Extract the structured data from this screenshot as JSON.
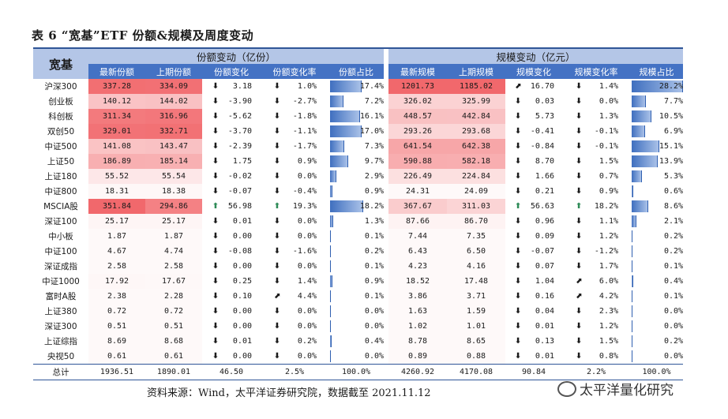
{
  "title": "表 6 “宽基”ETF 份额&规模及周度变动",
  "header": {
    "name": "宽基",
    "share_group": "份额变动（亿份）",
    "scale_group": "规模变动（亿元）",
    "share_cols": [
      "最新份额",
      "上期份额",
      "份额变化",
      "份额变化率",
      "份额占比"
    ],
    "scale_cols": [
      "最新规模",
      "上期规模",
      "规模变化",
      "规模变化率",
      "规模占比"
    ]
  },
  "colors": {
    "header_dark": "#4472c4",
    "header_light": "#b4c6e7",
    "heat": "#f0686c",
    "bar": "#4472c4",
    "up": "#2e8b57",
    "down": "#d0362c",
    "flat": "#e0a030"
  },
  "rows": [
    {
      "name": "沪深300",
      "sl": "337.28",
      "sp": "334.09",
      "sc": "3.18",
      "scd": "down",
      "sr": "1.0%",
      "srd": "down",
      "so": "17.4%",
      "gl": "1201.73",
      "gp": "1185.02",
      "gc": "16.70",
      "gcd": "flat",
      "gr": "1.4%",
      "grd": "down",
      "go": "28.2%"
    },
    {
      "name": "创业板",
      "sl": "140.12",
      "sp": "144.02",
      "sc": "-3.90",
      "scd": "down",
      "sr": "-2.7%",
      "srd": "down",
      "so": "7.2%",
      "gl": "326.02",
      "gp": "325.99",
      "gc": "0.03",
      "gcd": "down",
      "gr": "0.0%",
      "grd": "down",
      "go": "7.7%"
    },
    {
      "name": "科创板",
      "sl": "311.34",
      "sp": "316.96",
      "sc": "-5.62",
      "scd": "down",
      "sr": "-1.8%",
      "srd": "down",
      "so": "16.1%",
      "gl": "448.57",
      "gp": "442.84",
      "gc": "5.73",
      "gcd": "down",
      "gr": "1.3%",
      "grd": "down",
      "go": "10.5%"
    },
    {
      "name": "双创50",
      "sl": "329.01",
      "sp": "332.71",
      "sc": "-3.70",
      "scd": "down",
      "sr": "-1.1%",
      "srd": "down",
      "so": "17.0%",
      "gl": "293.26",
      "gp": "293.68",
      "gc": "-0.41",
      "gcd": "down",
      "gr": "-0.1%",
      "grd": "down",
      "go": "6.9%"
    },
    {
      "name": "中证500",
      "sl": "141.08",
      "sp": "143.47",
      "sc": "-2.39",
      "scd": "down",
      "sr": "-1.7%",
      "srd": "down",
      "so": "7.3%",
      "gl": "641.54",
      "gp": "642.38",
      "gc": "-0.84",
      "gcd": "down",
      "gr": "-0.1%",
      "grd": "down",
      "go": "15.1%"
    },
    {
      "name": "上证50",
      "sl": "186.89",
      "sp": "185.14",
      "sc": "1.75",
      "scd": "down",
      "sr": "0.9%",
      "srd": "down",
      "so": "9.7%",
      "gl": "590.88",
      "gp": "582.18",
      "gc": "8.70",
      "gcd": "down",
      "gr": "1.5%",
      "grd": "down",
      "go": "13.9%"
    },
    {
      "name": "上证180",
      "sl": "55.52",
      "sp": "55.54",
      "sc": "-0.02",
      "scd": "down",
      "sr": "0.0%",
      "srd": "down",
      "so": "2.9%",
      "gl": "226.49",
      "gp": "224.84",
      "gc": "1.66",
      "gcd": "down",
      "gr": "0.7%",
      "grd": "down",
      "go": "5.3%"
    },
    {
      "name": "中证800",
      "sl": "18.31",
      "sp": "18.38",
      "sc": "-0.07",
      "scd": "down",
      "sr": "-0.4%",
      "srd": "down",
      "so": "0.9%",
      "gl": "24.31",
      "gp": "24.09",
      "gc": "0.21",
      "gcd": "down",
      "gr": "0.9%",
      "grd": "down",
      "go": "0.6%"
    },
    {
      "name": "MSCIA股",
      "sl": "351.84",
      "sp": "294.86",
      "sc": "56.98",
      "scd": "up",
      "sr": "19.3%",
      "srd": "up",
      "so": "18.2%",
      "gl": "367.67",
      "gp": "311.03",
      "gc": "56.63",
      "gcd": "up",
      "gr": "18.2%",
      "grd": "up",
      "go": "8.6%"
    },
    {
      "name": "深证100",
      "sl": "25.17",
      "sp": "25.17",
      "sc": "0.01",
      "scd": "down",
      "sr": "0.0%",
      "srd": "down",
      "so": "1.3%",
      "gl": "87.66",
      "gp": "86.70",
      "gc": "0.96",
      "gcd": "down",
      "gr": "1.1%",
      "grd": "down",
      "go": "2.1%"
    },
    {
      "name": "中小板",
      "sl": "1.87",
      "sp": "1.87",
      "sc": "0.00",
      "scd": "down",
      "sr": "0.0%",
      "srd": "down",
      "so": "0.1%",
      "gl": "7.44",
      "gp": "7.35",
      "gc": "0.09",
      "gcd": "down",
      "gr": "1.2%",
      "grd": "down",
      "go": "0.2%"
    },
    {
      "name": "中证100",
      "sl": "4.67",
      "sp": "4.74",
      "sc": "-0.08",
      "scd": "down",
      "sr": "-1.6%",
      "srd": "down",
      "so": "0.2%",
      "gl": "6.43",
      "gp": "6.50",
      "gc": "-0.07",
      "gcd": "down",
      "gr": "-1.2%",
      "grd": "down",
      "go": "0.2%"
    },
    {
      "name": "深证成指",
      "sl": "2.58",
      "sp": "2.58",
      "sc": "0.00",
      "scd": "down",
      "sr": "0.0%",
      "srd": "down",
      "so": "0.1%",
      "gl": "4.23",
      "gp": "4.16",
      "gc": "0.07",
      "gcd": "down",
      "gr": "1.7%",
      "grd": "down",
      "go": "0.1%"
    },
    {
      "name": "中证1000",
      "sl": "17.92",
      "sp": "17.67",
      "sc": "0.25",
      "scd": "down",
      "sr": "1.4%",
      "srd": "down",
      "so": "0.9%",
      "gl": "18.52",
      "gp": "17.48",
      "gc": "1.04",
      "gcd": "down",
      "gr": "6.0%",
      "grd": "flat",
      "go": "0.4%"
    },
    {
      "name": "富时A股",
      "sl": "2.38",
      "sp": "2.28",
      "sc": "0.10",
      "scd": "down",
      "sr": "4.4%",
      "srd": "flat",
      "so": "0.1%",
      "gl": "3.86",
      "gp": "3.71",
      "gc": "0.16",
      "gcd": "down",
      "gr": "4.2%",
      "grd": "flat",
      "go": "0.1%"
    },
    {
      "name": "上证380",
      "sl": "0.72",
      "sp": "0.72",
      "sc": "0.00",
      "scd": "down",
      "sr": "0.0%",
      "srd": "down",
      "so": "0.0%",
      "gl": "1.63",
      "gp": "1.59",
      "gc": "0.04",
      "gcd": "down",
      "gr": "2.3%",
      "grd": "down",
      "go": "0.0%"
    },
    {
      "name": "深证300",
      "sl": "0.51",
      "sp": "0.51",
      "sc": "0.00",
      "scd": "down",
      "sr": "0.0%",
      "srd": "down",
      "so": "0.0%",
      "gl": "1.02",
      "gp": "1.01",
      "gc": "0.01",
      "gcd": "down",
      "gr": "1.2%",
      "grd": "down",
      "go": "0.0%"
    },
    {
      "name": "上证综指",
      "sl": "8.69",
      "sp": "8.68",
      "sc": "0.01",
      "scd": "down",
      "sr": "0.2%",
      "srd": "down",
      "so": "0.4%",
      "gl": "8.78",
      "gp": "8.65",
      "gc": "0.13",
      "gcd": "down",
      "gr": "1.5%",
      "grd": "down",
      "go": "0.2%"
    },
    {
      "name": "央视50",
      "sl": "0.61",
      "sp": "0.61",
      "sc": "0.00",
      "scd": "down",
      "sr": "0.0%",
      "srd": "down",
      "so": "0.0%",
      "gl": "0.89",
      "gp": "0.88",
      "gc": "0.01",
      "gcd": "down",
      "gr": "0.8%",
      "grd": "down",
      "go": "0.0%"
    }
  ],
  "total": {
    "name": "总计",
    "sl": "1936.51",
    "sp": "1890.01",
    "sc": "46.50",
    "sr": "2.5%",
    "so": "100.0%",
    "gl": "4260.92",
    "gp": "4170.08",
    "gc": "90.84",
    "gr": "2.2%",
    "go": "100.0%"
  },
  "footer": "资料来源：Wind，太平洋证券研究院，数据截至 2021.11.12",
  "watermark": "太平洋量化研究"
}
